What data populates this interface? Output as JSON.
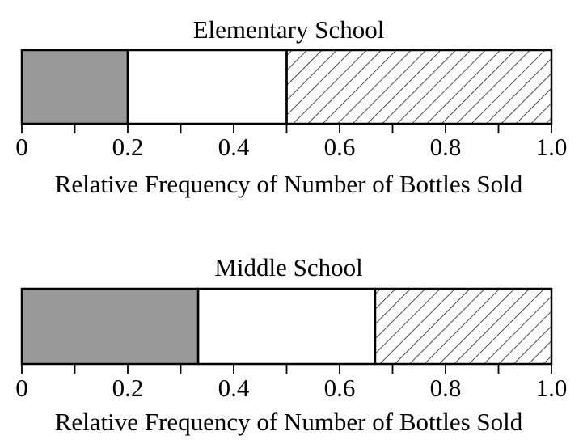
{
  "chart_data": [
    {
      "type": "bar",
      "orientation": "horizontal-stacked",
      "title": "Elementary School",
      "xlabel": "Relative Frequency of Number of Bottles Sold",
      "xlim": [
        0,
        1.0
      ],
      "ticks": [
        "0",
        "0.2",
        "0.4",
        "0.6",
        "0.8",
        "1.0"
      ],
      "segments": [
        {
          "start": 0,
          "end": 0.2,
          "fill": "gray"
        },
        {
          "start": 0.2,
          "end": 0.5,
          "fill": "white"
        },
        {
          "start": 0.5,
          "end": 1.0,
          "fill": "hatched"
        }
      ]
    },
    {
      "type": "bar",
      "orientation": "horizontal-stacked",
      "title": "Middle School",
      "xlabel": "Relative Frequency of Number of Bottles Sold",
      "xlim": [
        0,
        1.0
      ],
      "ticks": [
        "0",
        "0.2",
        "0.4",
        "0.6",
        "0.8",
        "1.0"
      ],
      "segments": [
        {
          "start": 0,
          "end": 0.333,
          "fill": "gray"
        },
        {
          "start": 0.333,
          "end": 0.667,
          "fill": "white"
        },
        {
          "start": 0.667,
          "end": 1.0,
          "fill": "hatched"
        }
      ]
    }
  ],
  "colors": {
    "gray": "#999999",
    "white": "#ffffff",
    "hatch": "#000000",
    "stroke": "#000000"
  }
}
